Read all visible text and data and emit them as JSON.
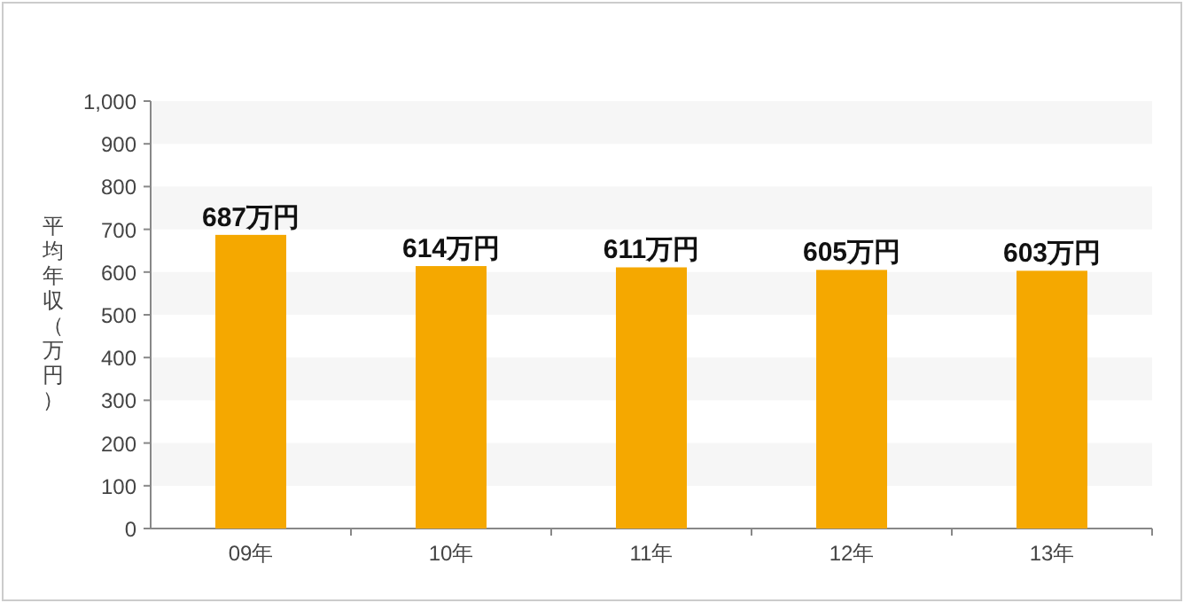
{
  "chart_data": {
    "type": "bar",
    "ylabel": "平均年収（万円）",
    "categories": [
      "09年",
      "10年",
      "11年",
      "12年",
      "13年"
    ],
    "values": [
      687,
      614,
      611,
      605,
      603
    ],
    "value_labels": [
      "687万円",
      "614万円",
      "611万円",
      "605万円",
      "603万円"
    ],
    "color": "#f5a800",
    "ylim": [
      0,
      1000
    ],
    "yticks": [
      0,
      100,
      200,
      300,
      400,
      500,
      600,
      700,
      800,
      900,
      {
        "value": 1000,
        "label": "1,000"
      }
    ]
  }
}
